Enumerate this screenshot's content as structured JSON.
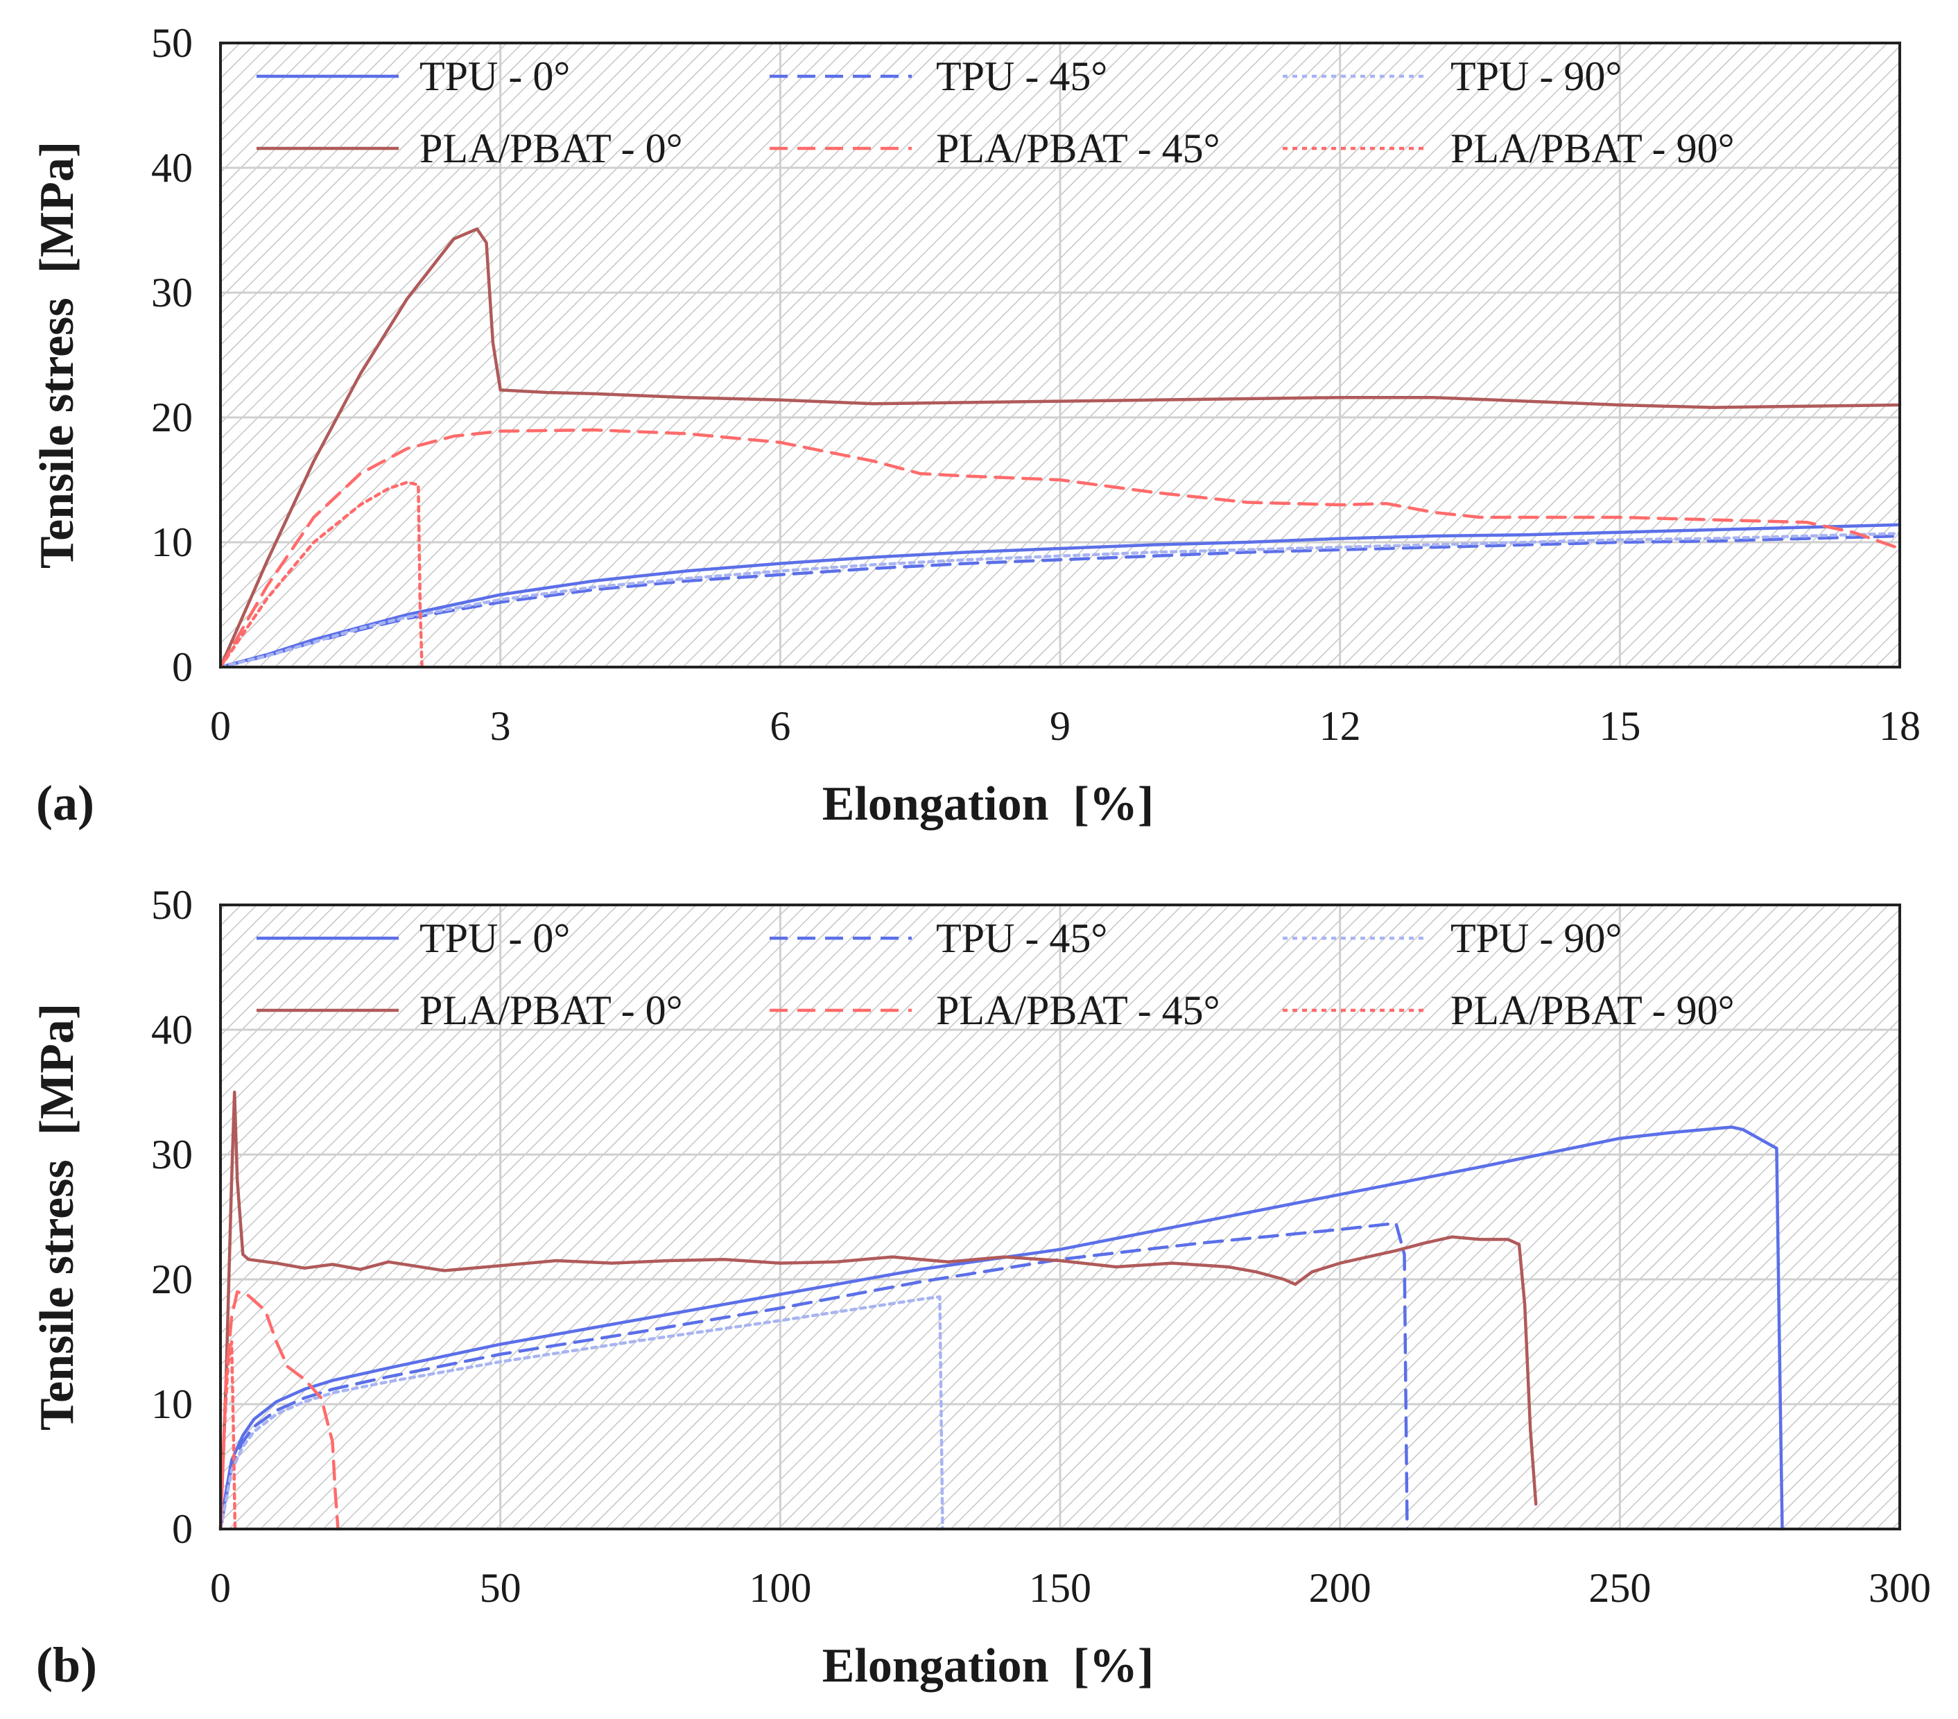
{
  "chart_data": [
    {
      "type": "line",
      "panel_label": "(a)",
      "xlabel": "Elongation  [%]",
      "ylabel": "Tensile stress  [MPa]",
      "xlim": [
        0,
        18
      ],
      "ylim": [
        0,
        50
      ],
      "xticks": [
        "0",
        "3",
        "6",
        "9",
        "12",
        "15",
        "18"
      ],
      "yticks": [
        "0",
        "10",
        "20",
        "30",
        "40",
        "50"
      ],
      "grid": true,
      "legend_position": "top",
      "series": [
        {
          "name": "TPU - 0°",
          "color": "#5b6fe8",
          "dash": "solid",
          "x": [
            0,
            0.5,
            1,
            1.5,
            2,
            3,
            4,
            5,
            6,
            7,
            8,
            9,
            10,
            11,
            12,
            13,
            14,
            15,
            16,
            17,
            18
          ],
          "y": [
            0,
            1.0,
            2.2,
            3.2,
            4.2,
            5.8,
            6.9,
            7.7,
            8.3,
            8.8,
            9.2,
            9.5,
            9.8,
            10.0,
            10.3,
            10.5,
            10.6,
            10.8,
            11.0,
            11.2,
            11.4
          ]
        },
        {
          "name": "TPU - 45°",
          "color": "#5b6fe8",
          "dash": "dashed",
          "x": [
            0,
            0.5,
            1,
            1.5,
            2,
            3,
            4,
            5,
            6,
            7,
            8,
            9,
            10,
            11,
            12,
            13,
            14,
            15,
            16,
            17,
            18
          ],
          "y": [
            0,
            0.9,
            2.0,
            3.0,
            3.9,
            5.2,
            6.2,
            6.9,
            7.4,
            7.9,
            8.3,
            8.6,
            8.9,
            9.2,
            9.4,
            9.6,
            9.8,
            10.0,
            10.1,
            10.3,
            10.5
          ]
        },
        {
          "name": "TPU - 90°",
          "color": "#a8b4f2",
          "dash": "dotted",
          "x": [
            0,
            0.5,
            1,
            1.5,
            2,
            3,
            4,
            5,
            6,
            7,
            8,
            9,
            10,
            11,
            12,
            13,
            14,
            15,
            16,
            17,
            18
          ],
          "y": [
            0,
            0.9,
            2.0,
            3.1,
            4.0,
            5.4,
            6.4,
            7.1,
            7.7,
            8.2,
            8.6,
            8.9,
            9.2,
            9.4,
            9.6,
            9.8,
            10.0,
            10.2,
            10.3,
            10.5,
            10.7
          ]
        },
        {
          "name": "PLA/PBAT - 0°",
          "color": "#b05a5a",
          "dash": "solid",
          "x": [
            0,
            0.5,
            1,
            1.5,
            2,
            2.5,
            2.75,
            2.85,
            2.92,
            3.0,
            3.5,
            4,
            5,
            6,
            7,
            8,
            9,
            10,
            11,
            12,
            13,
            14,
            15,
            16,
            17,
            18
          ],
          "y": [
            0,
            8.5,
            16.5,
            23.5,
            29.5,
            34.3,
            35.1,
            34.0,
            26.0,
            22.2,
            22.0,
            21.9,
            21.6,
            21.4,
            21.1,
            21.2,
            21.3,
            21.4,
            21.5,
            21.6,
            21.6,
            21.3,
            21.0,
            20.8,
            20.9,
            21.0
          ]
        },
        {
          "name": "PLA/PBAT - 45°",
          "color": "#ff6b6b",
          "dash": "dashed",
          "x": [
            0,
            0.5,
            1,
            1.5,
            2,
            2.5,
            3,
            4,
            5,
            6,
            7,
            7.5,
            8,
            9,
            10,
            11,
            12,
            12.5,
            13,
            13.5,
            14,
            15,
            16,
            17,
            17.5,
            18
          ],
          "y": [
            0,
            6.5,
            12.0,
            15.5,
            17.5,
            18.5,
            18.9,
            19.0,
            18.7,
            18.0,
            16.5,
            15.5,
            15.3,
            15.0,
            14.0,
            13.2,
            13.0,
            13.1,
            12.4,
            12.0,
            12.0,
            12.0,
            11.8,
            11.6,
            10.8,
            9.5
          ]
        },
        {
          "name": "PLA/PBAT - 90°",
          "color": "#ff6b6b",
          "dash": "dotted",
          "x": [
            0,
            0.5,
            1,
            1.5,
            1.8,
            2.0,
            2.12,
            2.14,
            2.16
          ],
          "y": [
            0,
            5.5,
            10.0,
            13.0,
            14.3,
            14.8,
            14.6,
            5.0,
            0
          ]
        }
      ]
    },
    {
      "type": "line",
      "panel_label": "(b)",
      "xlabel": "Elongation  [%]",
      "ylabel": "Tensile stress  [MPa]",
      "xlim": [
        0,
        300
      ],
      "ylim": [
        0,
        50
      ],
      "xticks": [
        "0",
        "50",
        "100",
        "150",
        "200",
        "250",
        "300"
      ],
      "yticks": [
        "0",
        "10",
        "20",
        "30",
        "40",
        "50"
      ],
      "grid": true,
      "legend_position": "top",
      "series": [
        {
          "name": "TPU - 0°",
          "color": "#5b6fe8",
          "dash": "solid",
          "x": [
            0,
            1,
            2,
            4,
            6,
            10,
            15,
            20,
            30,
            50,
            75,
            100,
            125,
            150,
            175,
            200,
            225,
            250,
            260,
            270,
            272,
            278,
            278.5,
            279
          ],
          "y": [
            0,
            3.0,
            5.5,
            7.5,
            8.8,
            10.2,
            11.2,
            11.9,
            12.9,
            14.8,
            16.8,
            18.8,
            20.8,
            22.4,
            24.6,
            26.8,
            29.0,
            31.3,
            31.8,
            32.2,
            32.0,
            30.5,
            15.0,
            0
          ]
        },
        {
          "name": "TPU - 45°",
          "color": "#5b6fe8",
          "dash": "dashed",
          "x": [
            0,
            1,
            2,
            4,
            6,
            10,
            15,
            20,
            30,
            50,
            75,
            100,
            125,
            150,
            175,
            200,
            210,
            211.5,
            212
          ],
          "y": [
            0,
            2.5,
            5.0,
            7.0,
            8.2,
            9.5,
            10.5,
            11.2,
            12.2,
            14.0,
            15.8,
            17.7,
            19.8,
            21.6,
            22.9,
            24.0,
            24.5,
            22.0,
            0
          ]
        },
        {
          "name": "TPU - 90°",
          "color": "#a8b4f2",
          "dash": "dotted",
          "x": [
            0,
            1,
            2,
            4,
            6,
            10,
            15,
            20,
            30,
            50,
            75,
            100,
            125,
            128.5,
            129
          ],
          "y": [
            0,
            2.3,
            4.7,
            6.6,
            7.8,
            9.2,
            10.2,
            10.9,
            11.8,
            13.4,
            15.1,
            16.7,
            18.4,
            18.6,
            0
          ]
        },
        {
          "name": "PLA/PBAT - 0°",
          "color": "#b05a5a",
          "dash": "solid",
          "x": [
            0,
            1,
            2,
            2.5,
            3,
            4,
            5,
            10,
            15,
            20,
            25,
            30,
            40,
            50,
            60,
            70,
            80,
            90,
            100,
            110,
            120,
            130,
            140,
            150,
            160,
            170,
            180,
            185,
            190,
            192,
            195,
            200,
            210,
            215,
            220,
            225,
            230,
            232,
            233,
            234,
            235
          ],
          "y": [
            0,
            12,
            28,
            35.0,
            28,
            22.0,
            21.6,
            21.3,
            20.9,
            21.2,
            20.8,
            21.4,
            20.7,
            21.1,
            21.5,
            21.3,
            21.5,
            21.6,
            21.3,
            21.4,
            21.8,
            21.4,
            21.8,
            21.5,
            21.0,
            21.3,
            21.0,
            20.6,
            20.0,
            19.6,
            20.6,
            21.3,
            22.3,
            22.9,
            23.4,
            23.2,
            23.2,
            22.8,
            18.0,
            8.0,
            2.0
          ]
        },
        {
          "name": "PLA/PBAT - 45°",
          "color": "#ff6b6b",
          "dash": "dashed",
          "x": [
            0,
            1,
            2,
            3,
            5,
            8,
            10,
            12,
            15,
            18,
            20,
            20.5,
            21
          ],
          "y": [
            0,
            12,
            17,
            19.0,
            18.7,
            17.5,
            15.0,
            13.0,
            12.0,
            10.5,
            7.0,
            3.0,
            0
          ]
        },
        {
          "name": "PLA/PBAT - 90°",
          "color": "#ff6b6b",
          "dash": "dotted",
          "x": [
            0,
            0.7,
            1.3,
            2.0,
            2.3,
            2.6
          ],
          "y": [
            0,
            8,
            13,
            15.0,
            8.0,
            0
          ]
        }
      ]
    }
  ]
}
